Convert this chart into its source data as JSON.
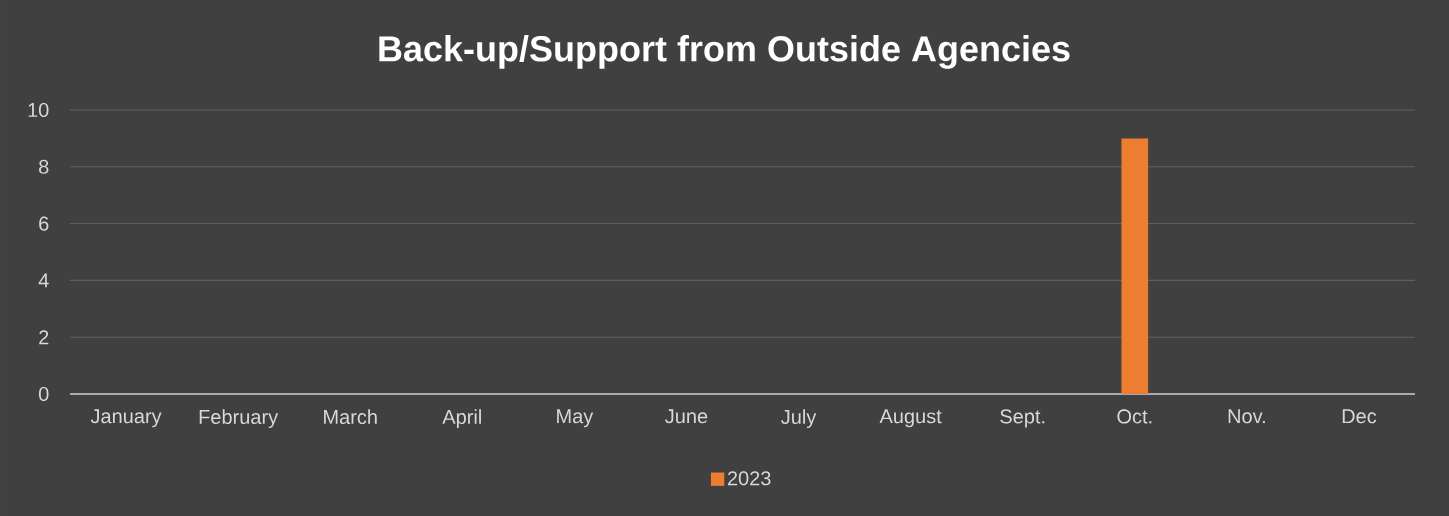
{
  "chart_data": {
    "type": "bar",
    "title": "Back-up/Support from Outside Agencies",
    "categories": [
      "January",
      "February",
      "March",
      "April",
      "May",
      "June",
      "July",
      "August",
      "Sept.",
      "Oct.",
      "Nov.",
      "Dec"
    ],
    "series": [
      {
        "name": "2023",
        "color": "#ed7d31",
        "values": [
          0,
          0,
          0,
          0,
          0,
          0,
          0,
          0,
          0,
          9,
          0,
          0
        ]
      }
    ],
    "ylim": [
      0,
      10
    ],
    "yticks": [
      0,
      2,
      4,
      6,
      8,
      10
    ],
    "grid": "y",
    "legend": "bottom"
  }
}
